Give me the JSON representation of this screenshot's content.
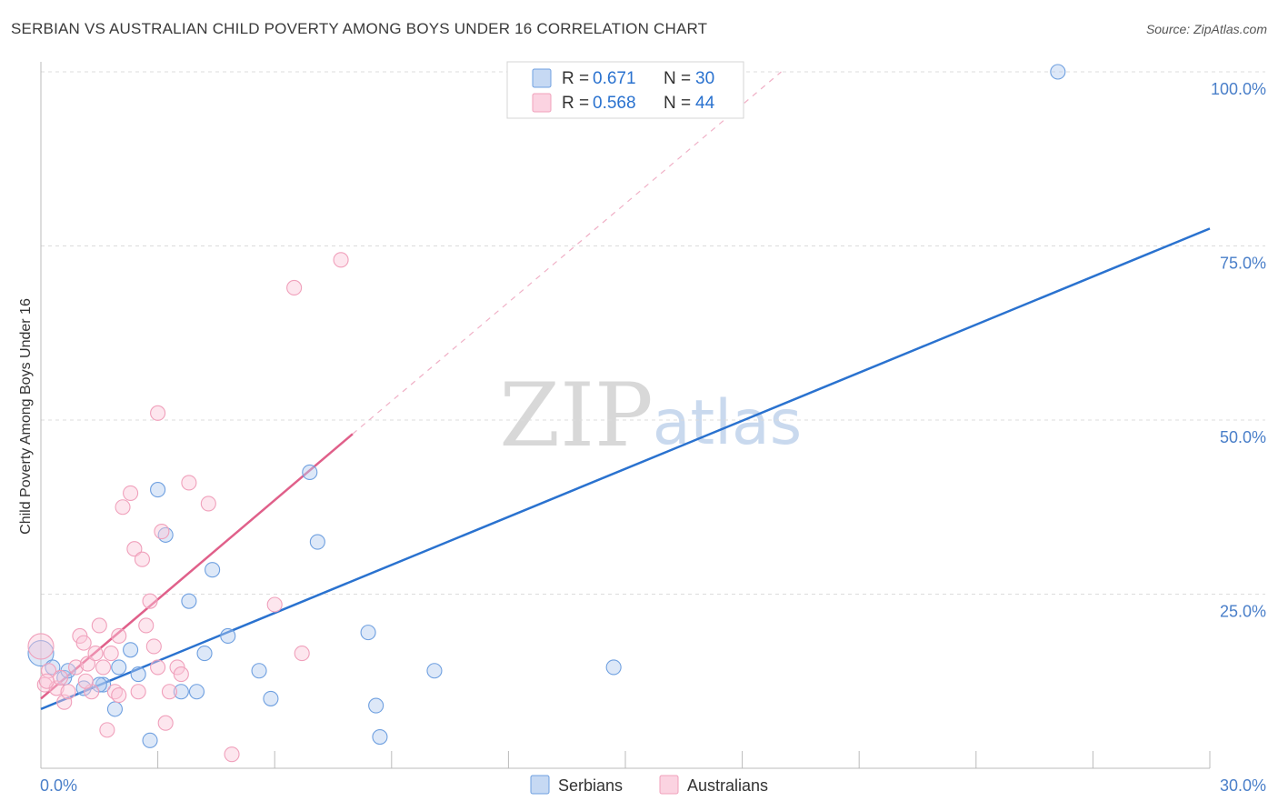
{
  "header": {
    "title": "SERBIAN VS AUSTRALIAN CHILD POVERTY AMONG BOYS UNDER 16 CORRELATION CHART",
    "source": "Source: ZipAtlas.com"
  },
  "colors": {
    "serbians": "#6fa0e0",
    "australians": "#f0a0bb",
    "serbians_line": "#2a72cf",
    "australians_line": "#e0608a",
    "tick": "#4a7fc9"
  },
  "chart_data": {
    "type": "scatter",
    "title": "SERBIAN VS AUSTRALIAN CHILD POVERTY AMONG BOYS UNDER 16 CORRELATION CHART",
    "ylabel": "Child Poverty Among Boys Under 16",
    "xlabel": "",
    "xlim": [
      0,
      30
    ],
    "ylim": [
      0,
      100
    ],
    "x_tick_labels": [
      "0.0%",
      "30.0%"
    ],
    "y_ticks": [
      25,
      50,
      75,
      100
    ],
    "y_tick_labels": [
      "25.0%",
      "50.0%",
      "75.0%",
      "100.0%"
    ],
    "watermark": {
      "zip": "ZIP",
      "atlas": "atlas"
    },
    "legend": {
      "rows": [
        {
          "r_label": "R =",
          "r_value": "0.671",
          "n_label": "N =",
          "n_value": "30"
        },
        {
          "r_label": "R =",
          "r_value": "0.568",
          "n_label": "N =",
          "n_value": "44"
        }
      ]
    },
    "series": [
      {
        "name": "Serbians",
        "r": 0.671,
        "n": 30,
        "trend": {
          "x0": 0,
          "y0": 8.5,
          "x1": 30,
          "y1": 77.5
        },
        "points": [
          [
            0.0,
            16.5
          ],
          [
            0.3,
            14.5
          ],
          [
            0.6,
            13.0
          ],
          [
            0.7,
            14.0
          ],
          [
            1.1,
            11.5
          ],
          [
            1.6,
            12.0
          ],
          [
            1.9,
            8.5
          ],
          [
            2.0,
            14.5
          ],
          [
            2.3,
            17.0
          ],
          [
            2.5,
            13.5
          ],
          [
            2.8,
            4.0
          ],
          [
            3.0,
            40.0
          ],
          [
            3.2,
            33.5
          ],
          [
            3.6,
            11.0
          ],
          [
            3.8,
            24.0
          ],
          [
            4.0,
            11.0
          ],
          [
            4.2,
            16.5
          ],
          [
            4.4,
            28.5
          ],
          [
            4.8,
            19.0
          ],
          [
            5.6,
            14.0
          ],
          [
            5.9,
            10.0
          ],
          [
            6.9,
            42.5
          ],
          [
            7.1,
            32.5
          ],
          [
            8.4,
            19.5
          ],
          [
            8.6,
            9.0
          ],
          [
            8.7,
            4.5
          ],
          [
            10.1,
            14.0
          ],
          [
            14.7,
            14.5
          ],
          [
            26.1,
            100.0
          ],
          [
            1.5,
            12.0
          ]
        ]
      },
      {
        "name": "Australians",
        "r": 0.568,
        "n": 44,
        "trend": {
          "x0": 0,
          "y0": 10.0,
          "x1": 8.0,
          "y1": 48.0
        },
        "trend_dashed": {
          "x0": 8.0,
          "y0": 48.0,
          "x1": 19.0,
          "y1": 100.0
        },
        "points": [
          [
            0.0,
            17.5
          ],
          [
            0.1,
            12.0
          ],
          [
            0.2,
            14.0
          ],
          [
            0.4,
            11.5
          ],
          [
            0.5,
            13.0
          ],
          [
            0.6,
            9.5
          ],
          [
            0.7,
            11.0
          ],
          [
            0.9,
            14.5
          ],
          [
            1.0,
            19.0
          ],
          [
            1.1,
            18.0
          ],
          [
            1.2,
            15.0
          ],
          [
            1.3,
            11.0
          ],
          [
            1.4,
            16.5
          ],
          [
            1.5,
            20.5
          ],
          [
            1.6,
            14.5
          ],
          [
            1.7,
            5.5
          ],
          [
            1.8,
            16.5
          ],
          [
            1.9,
            11.0
          ],
          [
            2.0,
            10.5
          ],
          [
            2.0,
            19.0
          ],
          [
            2.1,
            37.5
          ],
          [
            2.3,
            39.5
          ],
          [
            2.4,
            31.5
          ],
          [
            2.5,
            11.0
          ],
          [
            2.6,
            30.0
          ],
          [
            2.7,
            20.5
          ],
          [
            2.8,
            24.0
          ],
          [
            2.9,
            17.5
          ],
          [
            3.0,
            14.5
          ],
          [
            3.0,
            51.0
          ],
          [
            3.1,
            34.0
          ],
          [
            3.2,
            6.5
          ],
          [
            3.3,
            11.0
          ],
          [
            3.5,
            14.5
          ],
          [
            3.6,
            13.5
          ],
          [
            3.8,
            41.0
          ],
          [
            4.3,
            38.0
          ],
          [
            4.9,
            2.0
          ],
          [
            6.0,
            23.5
          ],
          [
            6.5,
            69.0
          ],
          [
            6.7,
            16.5
          ],
          [
            7.7,
            73.0
          ],
          [
            0.15,
            12.5
          ],
          [
            1.15,
            12.5
          ]
        ]
      }
    ]
  },
  "bottom_legend": {
    "serbians_label": "Serbians",
    "australians_label": "Australians"
  }
}
